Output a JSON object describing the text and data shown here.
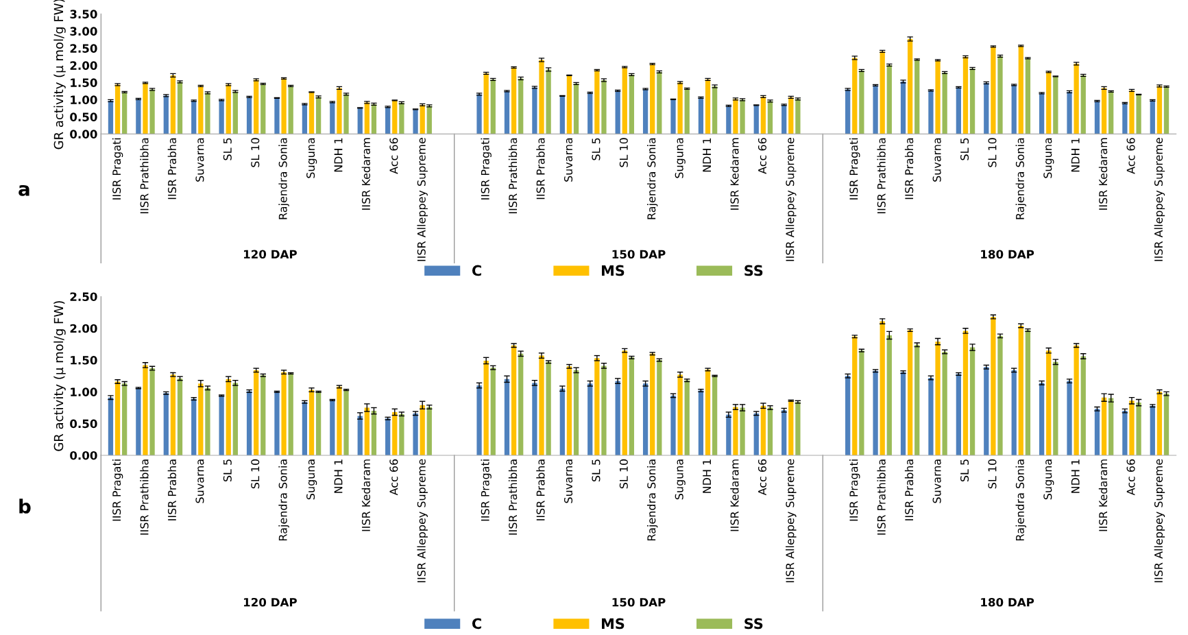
{
  "chart_data": [
    {
      "type": "bar",
      "ylabel": "GR activity (μ mol/g FW)",
      "categories": [
        "IISR Pragati",
        "IISR Prathibha",
        "IISR Prabha",
        "Suvarna",
        "SL 5",
        "SL 10",
        "Rajendra Sonia",
        "Suguna",
        "NDH 1",
        "IISR Kedaram",
        "Acc 66",
        "IISR Alleppey Supreme",
        "IISR Pragati",
        "IISR Prathibha",
        "IISR Prabha",
        "Suvarna",
        "SL 5",
        "SL 10",
        "Rajendra Sonia",
        "Suguna",
        "NDH 1",
        "IISR Kedaram",
        "Acc 66",
        "IISR Alleppey Supreme",
        "IISR Pragati",
        "IISR Prathibha",
        "IISR Prabha",
        "Suvarna",
        "SL 5",
        "SL 10",
        "Rajendra Sonia",
        "Suguna",
        "NDH 1",
        "IISR Kedaram",
        "Acc 66",
        "IISR Alleppey Supreme"
      ],
      "series": [
        {
          "name": "C",
          "color": "#4f81bd",
          "values": [
            0.97,
            1.02,
            1.12,
            0.97,
            0.99,
            1.08,
            1.05,
            0.87,
            0.93,
            0.76,
            0.79,
            0.72,
            1.16,
            1.25,
            1.36,
            1.11,
            1.2,
            1.26,
            1.31,
            1.01,
            1.06,
            0.82,
            0.84,
            0.85,
            1.3,
            1.42,
            1.53,
            1.27,
            1.36,
            1.49,
            1.43,
            1.19,
            1.23,
            0.96,
            0.9,
            0.98
          ],
          "errors": [
            0.03,
            0.02,
            0.03,
            0.02,
            0.02,
            0.02,
            0.01,
            0.02,
            0.02,
            0.01,
            0.02,
            0.01,
            0.03,
            0.02,
            0.03,
            0.01,
            0.02,
            0.02,
            0.02,
            0.01,
            0.02,
            0.02,
            0.01,
            0.02,
            0.03,
            0.02,
            0.04,
            0.02,
            0.02,
            0.03,
            0.02,
            0.02,
            0.03,
            0.02,
            0.02,
            0.02
          ]
        },
        {
          "name": "MS",
          "color": "#ffc000",
          "values": [
            1.44,
            1.49,
            1.71,
            1.4,
            1.44,
            1.58,
            1.62,
            1.22,
            1.34,
            0.92,
            0.98,
            0.85,
            1.77,
            1.94,
            2.16,
            1.71,
            1.86,
            1.95,
            2.04,
            1.5,
            1.59,
            1.02,
            1.09,
            1.07,
            2.22,
            2.41,
            2.77,
            2.15,
            2.25,
            2.55,
            2.57,
            1.81,
            2.05,
            1.34,
            1.27,
            1.4
          ],
          "errors": [
            0.03,
            0.02,
            0.05,
            0.02,
            0.03,
            0.03,
            0.02,
            0.01,
            0.04,
            0.03,
            0.01,
            0.03,
            0.03,
            0.02,
            0.05,
            0.01,
            0.02,
            0.02,
            0.02,
            0.03,
            0.03,
            0.03,
            0.03,
            0.03,
            0.05,
            0.03,
            0.06,
            0.02,
            0.03,
            0.02,
            0.02,
            0.02,
            0.04,
            0.04,
            0.03,
            0.03
          ]
        },
        {
          "name": "SS",
          "color": "#9bbb59",
          "values": [
            1.22,
            1.3,
            1.52,
            1.2,
            1.24,
            1.46,
            1.4,
            1.08,
            1.16,
            0.87,
            0.91,
            0.82,
            1.59,
            1.62,
            1.88,
            1.47,
            1.57,
            1.73,
            1.81,
            1.32,
            1.39,
            1.0,
            0.96,
            1.02,
            1.85,
            2.01,
            2.17,
            1.79,
            1.91,
            2.27,
            2.21,
            1.68,
            1.71,
            1.24,
            1.15,
            1.38
          ],
          "errors": [
            0.02,
            0.03,
            0.03,
            0.03,
            0.03,
            0.02,
            0.02,
            0.03,
            0.03,
            0.03,
            0.03,
            0.03,
            0.03,
            0.04,
            0.05,
            0.03,
            0.04,
            0.03,
            0.03,
            0.02,
            0.04,
            0.03,
            0.03,
            0.03,
            0.03,
            0.03,
            0.02,
            0.03,
            0.03,
            0.03,
            0.02,
            0.01,
            0.03,
            0.02,
            0.01,
            0.02
          ]
        }
      ],
      "ylim": [
        0,
        3.5
      ],
      "yticks": [
        {
          "value": 0,
          "label": "0.00"
        },
        {
          "value": 0.5,
          "label": "0.50"
        },
        {
          "value": 1,
          "label": "1.00"
        },
        {
          "value": 1.5,
          "label": "1.50"
        },
        {
          "value": 2,
          "label": "2.00"
        },
        {
          "value": 2.5,
          "label": "2.50"
        },
        {
          "value": 3,
          "label": "3.00"
        },
        {
          "value": 3.5,
          "label": "3.50"
        }
      ],
      "annotations": [
        "120 DAP",
        "150 DAP",
        "180 DAP",
        "a"
      ],
      "legend": "bottom",
      "grid": false
    },
    {
      "type": "bar",
      "ylabel": "GR activity (μ mol/g FW)",
      "categories": [
        "IISR Pragati",
        "IISR Prathibha",
        "IISR Prabha",
        "Suvarna",
        "SL 5",
        "SL 10",
        "Rajendra Sonia",
        "Suguna",
        "NDH 1",
        "IISR Kedaram",
        "Acc 66",
        "IISR Alleppey Supreme",
        "IISR Pragati",
        "IISR Prathibha",
        "IISR Prabha",
        "Suvarna",
        "SL 5",
        "SL 10",
        "Rajendra Sonia",
        "Suguna",
        "NDH 1",
        "IISR Kedaram",
        "Acc 66",
        "IISR Alleppey Supreme",
        "IISR Pragati",
        "IISR Prathibha",
        "IISR Prabha",
        "Suvarna",
        "SL 5",
        "SL 10",
        "Rajendra Sonia",
        "Suguna",
        "NDH 1",
        "IISR Kedaram",
        "Acc 66",
        "IISR Alleppey Supreme"
      ],
      "series": [
        {
          "name": "C",
          "color": "#4f81bd",
          "values": [
            0.91,
            1.06,
            0.98,
            0.89,
            0.94,
            1.01,
            1.0,
            0.84,
            0.87,
            0.62,
            0.58,
            0.66,
            1.1,
            1.2,
            1.14,
            1.05,
            1.13,
            1.17,
            1.13,
            0.94,
            1.02,
            0.64,
            0.66,
            0.71,
            1.25,
            1.33,
            1.31,
            1.22,
            1.28,
            1.39,
            1.34,
            1.14,
            1.17,
            0.73,
            0.7,
            0.78
          ],
          "errors": [
            0.03,
            0.01,
            0.02,
            0.02,
            0.01,
            0.02,
            0.01,
            0.02,
            0.01,
            0.05,
            0.02,
            0.03,
            0.04,
            0.05,
            0.04,
            0.04,
            0.04,
            0.04,
            0.04,
            0.03,
            0.02,
            0.04,
            0.03,
            0.03,
            0.03,
            0.02,
            0.02,
            0.03,
            0.02,
            0.03,
            0.03,
            0.03,
            0.03,
            0.03,
            0.03,
            0.02
          ]
        },
        {
          "name": "MS",
          "color": "#ffc000",
          "values": [
            1.16,
            1.42,
            1.27,
            1.13,
            1.2,
            1.34,
            1.31,
            1.03,
            1.08,
            0.75,
            0.68,
            0.79,
            1.49,
            1.73,
            1.57,
            1.4,
            1.53,
            1.65,
            1.6,
            1.27,
            1.35,
            0.76,
            0.78,
            0.86,
            1.87,
            2.11,
            1.97,
            1.79,
            1.96,
            2.18,
            2.04,
            1.65,
            1.73,
            0.91,
            0.86,
            1.0
          ],
          "errors": [
            0.03,
            0.04,
            0.03,
            0.05,
            0.04,
            0.03,
            0.03,
            0.03,
            0.02,
            0.06,
            0.05,
            0.06,
            0.05,
            0.03,
            0.04,
            0.03,
            0.04,
            0.03,
            0.02,
            0.04,
            0.02,
            0.04,
            0.04,
            0.01,
            0.02,
            0.04,
            0.02,
            0.05,
            0.04,
            0.03,
            0.03,
            0.04,
            0.03,
            0.06,
            0.05,
            0.03
          ]
        },
        {
          "name": "SS",
          "color": "#9bbb59",
          "values": [
            1.13,
            1.37,
            1.21,
            1.06,
            1.14,
            1.26,
            1.29,
            1.0,
            1.03,
            0.7,
            0.65,
            0.76,
            1.38,
            1.6,
            1.47,
            1.34,
            1.41,
            1.54,
            1.5,
            1.18,
            1.25,
            0.75,
            0.75,
            0.84,
            1.65,
            1.89,
            1.74,
            1.63,
            1.7,
            1.88,
            1.97,
            1.47,
            1.56,
            0.9,
            0.83,
            0.97
          ],
          "errors": [
            0.03,
            0.03,
            0.03,
            0.03,
            0.04,
            0.02,
            0.01,
            0.01,
            0.01,
            0.05,
            0.03,
            0.03,
            0.03,
            0.04,
            0.02,
            0.04,
            0.04,
            0.02,
            0.02,
            0.02,
            0.01,
            0.05,
            0.03,
            0.02,
            0.02,
            0.06,
            0.03,
            0.03,
            0.05,
            0.03,
            0.02,
            0.04,
            0.04,
            0.06,
            0.05,
            0.03
          ]
        }
      ],
      "ylim": [
        0,
        2.5
      ],
      "yticks": [
        {
          "value": 0,
          "label": "0.00"
        },
        {
          "value": 0.5,
          "label": "0.50"
        },
        {
          "value": 1,
          "label": "1.00"
        },
        {
          "value": 1.5,
          "label": "1.50"
        },
        {
          "value": 2,
          "label": "2.00"
        },
        {
          "value": 2.5,
          "label": "2.50"
        }
      ],
      "annotations": [
        "120 DAP",
        "150 DAP",
        "180 DAP",
        "b"
      ],
      "legend": "bottom",
      "grid": false
    }
  ]
}
